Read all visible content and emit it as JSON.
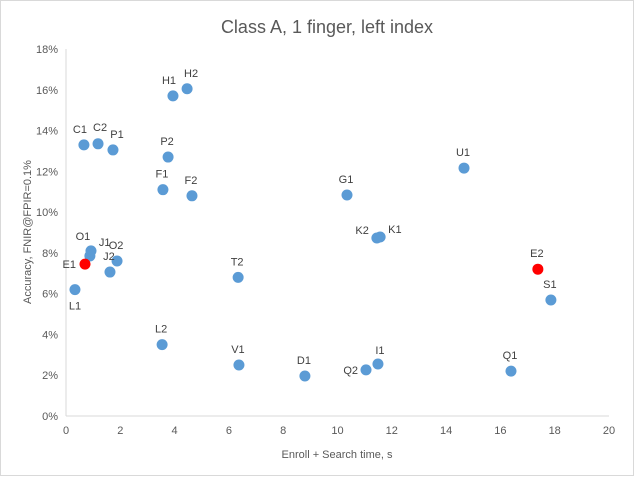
{
  "chart_data": {
    "type": "scatter",
    "title": "Class A, 1 finger, left index",
    "xlabel": "Enroll + Search time, s",
    "ylabel": "Accuracy, FNIR@FPIR=0.1%",
    "xlim": [
      0,
      20
    ],
    "ylim": [
      0,
      18
    ],
    "xticks": [
      "0",
      "2",
      "4",
      "6",
      "8",
      "10",
      "12",
      "14",
      "16",
      "18",
      "20"
    ],
    "yticks": [
      "0%",
      "2%",
      "4%",
      "6%",
      "8%",
      "10%",
      "12%",
      "14%",
      "16%",
      "18%"
    ],
    "grid": false,
    "legend": "none",
    "colors": {
      "default": "#5b9bd5",
      "highlight": "#ff0000"
    },
    "points": [
      {
        "label": "C1",
        "x": 0.66,
        "y": 13.3
      },
      {
        "label": "C2",
        "x": 1.18,
        "y": 13.35
      },
      {
        "label": "P1",
        "x": 1.73,
        "y": 13.05
      },
      {
        "label": "H1",
        "x": 3.94,
        "y": 15.7
      },
      {
        "label": "H2",
        "x": 4.46,
        "y": 16.05
      },
      {
        "label": "P2",
        "x": 3.76,
        "y": 12.7
      },
      {
        "label": "F1",
        "x": 3.57,
        "y": 11.1
      },
      {
        "label": "F2",
        "x": 4.64,
        "y": 10.8
      },
      {
        "label": "O1",
        "x": 0.92,
        "y": 8.1
      },
      {
        "label": "J1",
        "x": 0.88,
        "y": 7.85
      },
      {
        "label": "E1",
        "x": 0.7,
        "y": 7.45,
        "highlight": true
      },
      {
        "label": "O2",
        "x": 1.88,
        "y": 7.6
      },
      {
        "label": "J2",
        "x": 1.62,
        "y": 7.06
      },
      {
        "label": "L1",
        "x": 0.33,
        "y": 6.2
      },
      {
        "label": "T2",
        "x": 6.34,
        "y": 6.8
      },
      {
        "label": "L2",
        "x": 3.54,
        "y": 3.5
      },
      {
        "label": "V1",
        "x": 6.37,
        "y": 2.5
      },
      {
        "label": "D1",
        "x": 8.8,
        "y": 1.96
      },
      {
        "label": "Q2",
        "x": 11.05,
        "y": 2.26
      },
      {
        "label": "I1",
        "x": 11.49,
        "y": 2.55
      },
      {
        "label": "G1",
        "x": 10.35,
        "y": 10.84
      },
      {
        "label": "K1",
        "x": 11.57,
        "y": 8.78
      },
      {
        "label": "K2",
        "x": 11.45,
        "y": 8.73
      },
      {
        "label": "U1",
        "x": 14.66,
        "y": 12.16
      },
      {
        "label": "E2",
        "x": 17.38,
        "y": 7.2,
        "highlight": true
      },
      {
        "label": "S1",
        "x": 17.86,
        "y": 5.69
      },
      {
        "label": "Q1",
        "x": 16.39,
        "y": 2.2
      }
    ]
  }
}
